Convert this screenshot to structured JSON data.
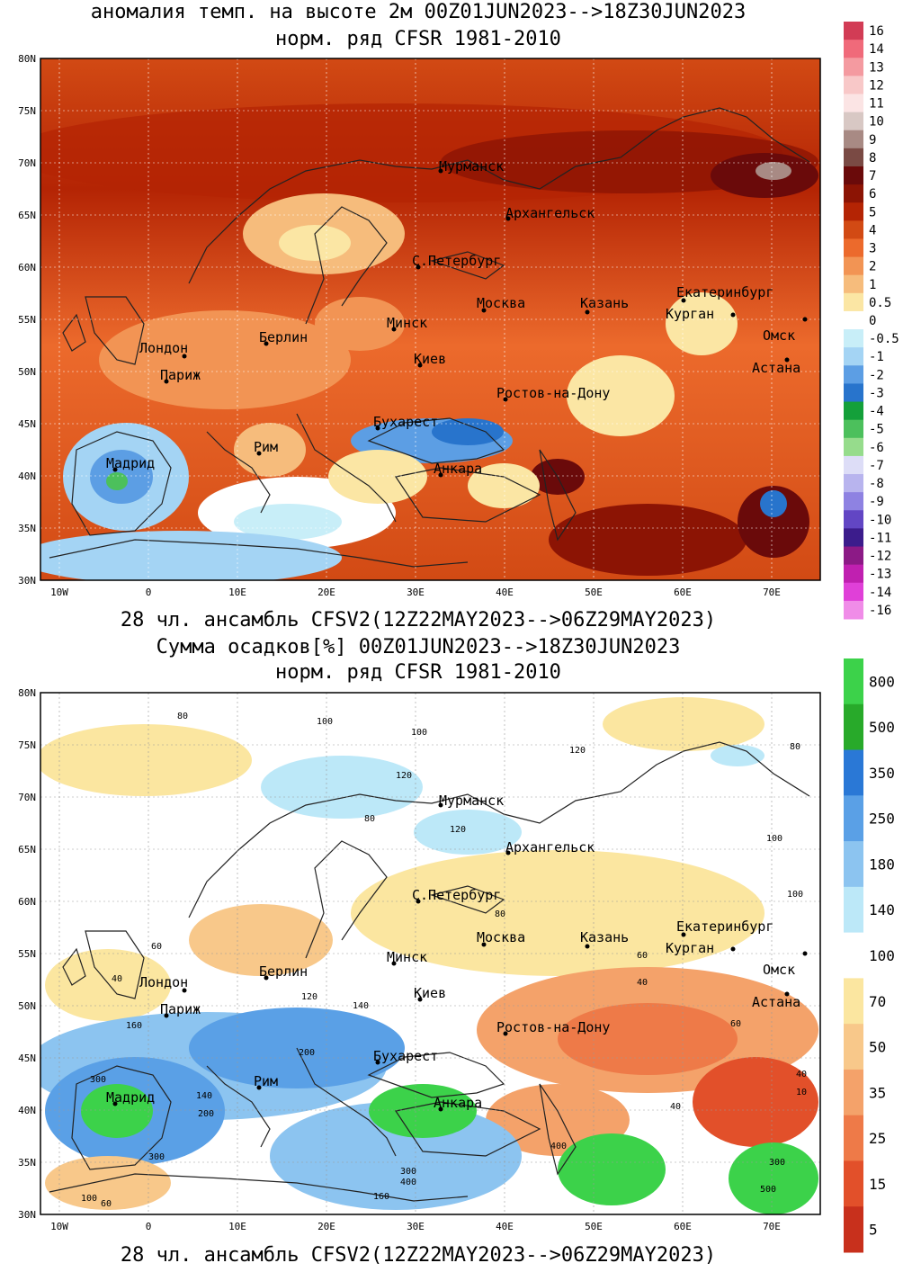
{
  "panel1": {
    "title1": "аномалия темп. на высоте 2м 00Z01JUN2023-->18Z30JUN2023",
    "title2": "норм. ряд CFSR 1981-2010",
    "footer": "28 чл. ансамбль CFSV2(12Z22MAY2023-->06Z29MAY2023)",
    "lat_labels": [
      "80N",
      "75N",
      "70N",
      "65N",
      "60N",
      "55N",
      "50N",
      "45N",
      "40N",
      "35N",
      "30N"
    ],
    "lon_labels": [
      "10W",
      "0",
      "10E",
      "20E",
      "30E",
      "40E",
      "50E",
      "60E",
      "70E"
    ],
    "colorbar": {
      "labels": [
        "16",
        "14",
        "13",
        "12",
        "11",
        "10",
        "9",
        "8",
        "7",
        "6",
        "5",
        "4",
        "3",
        "2",
        "1",
        "0.5",
        "0",
        "-0.5",
        "-1",
        "-2",
        "-3",
        "-4",
        "-5",
        "-6",
        "-7",
        "-8",
        "-9",
        "-10",
        "-11",
        "-12",
        "-13",
        "-14",
        "-16"
      ],
      "colors": [
        "#d23c55",
        "#f06a7a",
        "#f49aa0",
        "#f8c8c8",
        "#fbe4e4",
        "#d8c8c4",
        "#a88a84",
        "#7a4a44",
        "#6a0a0a",
        "#8c1404",
        "#b42404",
        "#d24a14",
        "#ec6a2c",
        "#f29454",
        "#f6bc7c",
        "#fbe6a4",
        "#ffffff",
        "#c8eef8",
        "#a4d4f4",
        "#5c9ee4",
        "#2874cc",
        "#14a03a",
        "#4cc05c",
        "#96dc8c",
        "#ddddf7",
        "#b8b4ee",
        "#8e82e2",
        "#6246c4",
        "#3c1c8c",
        "#8c1a86",
        "#c020b0",
        "#e040d8",
        "#f08ce8"
      ]
    }
  },
  "panel2": {
    "title1": "Сумма осадков[%] 00Z01JUN2023-->18Z30JUN2023",
    "title2": "норм. ряд CFSR 1981-2010",
    "footer": "28 чл. ансамбль CFSV2(12Z22MAY2023-->06Z29MAY2023)",
    "lat_labels": [
      "80N",
      "75N",
      "70N",
      "65N",
      "60N",
      "55N",
      "50N",
      "45N",
      "40N",
      "35N",
      "30N"
    ],
    "lon_labels": [
      "10W",
      "0",
      "10E",
      "20E",
      "30E",
      "40E",
      "50E",
      "60E",
      "70E"
    ],
    "colorbar": {
      "labels": [
        "800",
        "500",
        "350",
        "250",
        "180",
        "140",
        "100",
        "70",
        "50",
        "35",
        "25",
        "15",
        "5"
      ],
      "colors": [
        "#3cd24a",
        "#28aa2a",
        "#2a78d6",
        "#5aa0e6",
        "#8cc4f0",
        "#bce8f8",
        "#ffffff",
        "#fbe6a0",
        "#f8c88a",
        "#f4a26a",
        "#ee7a48",
        "#e2502a",
        "#c8301c"
      ]
    },
    "contour_labels": [
      "80",
      "100",
      "120",
      "140",
      "160",
      "200",
      "300",
      "400",
      "60",
      "40",
      "10",
      "500"
    ]
  },
  "cities": [
    "Мурманск",
    "Архангельск",
    "С.Петербург",
    "Москва",
    "Казань",
    "Екатеринбург",
    "Курган",
    "Омск",
    "Минск",
    "Берлин",
    "Лондон",
    "Париж",
    "Киев",
    "Астана",
    "Ростов-на-Дону",
    "Бухарест",
    "Рим",
    "Мадрид",
    "Анкара"
  ]
}
